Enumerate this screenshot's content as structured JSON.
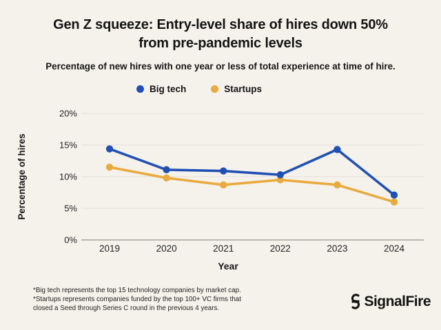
{
  "page": {
    "background_color": "#f5f2ec"
  },
  "header": {
    "title": "Gen Z squeeze: Entry-level share of hires down 50%\nfrom pre-pandemic levels",
    "subtitle": "Percentage of new hires with one year or less of total experience at time of hire."
  },
  "chart_data": {
    "type": "line",
    "categories": [
      "2019",
      "2020",
      "2021",
      "2022",
      "2023",
      "2024"
    ],
    "series": [
      {
        "name": "Big tech",
        "color": "#2150b4",
        "values": [
          14.4,
          11.1,
          10.9,
          10.3,
          14.3,
          7.1
        ]
      },
      {
        "name": "Startups",
        "color": "#e9ab3f",
        "values": [
          11.5,
          9.8,
          8.7,
          9.5,
          8.7,
          6.0
        ]
      }
    ],
    "xlabel": "Year",
    "ylabel": "Percentage of hires",
    "ylim": [
      0,
      20
    ],
    "yticks": [
      0,
      5,
      10,
      15,
      20
    ],
    "ytick_suffix": "%",
    "grid": true,
    "legend_position": "top",
    "grid_color": "#e2dfd6",
    "axis_line_color": "#9b968b",
    "tick_label_color": "#242424"
  },
  "footer": {
    "notes": "*Big tech represents the top 15 technology companies by market cap.\n*Startups represents companies funded by the top 100+ VC firms that\nclosed a Seed through Series C round in the previous 4 years.",
    "logo_text": "SignalFire"
  }
}
